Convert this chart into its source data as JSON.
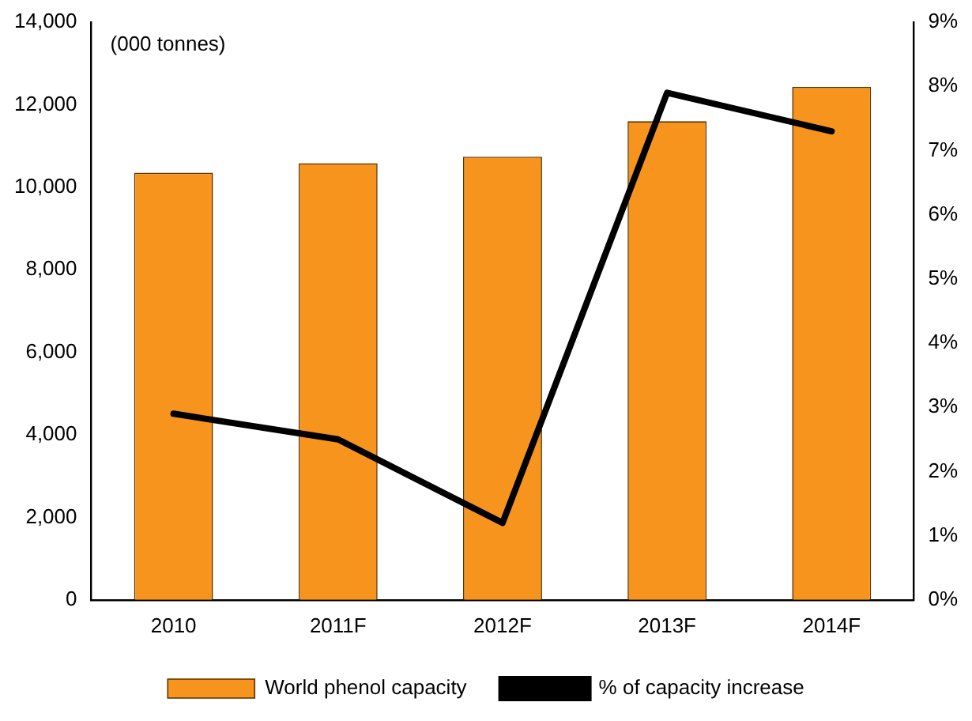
{
  "chart_data": {
    "type": "bar",
    "categories": [
      "2010",
      "2011F",
      "2012F",
      "2013F",
      "2014F"
    ],
    "series": [
      {
        "name": "World phenol capacity",
        "color": "#f7941d",
        "values": [
          10350,
          10580,
          10740,
          11600,
          12430
        ]
      },
      {
        "name": "% of capacity increase",
        "type": "line",
        "axis": "y2",
        "color": "#000000",
        "values": [
          2.9,
          2.5,
          1.2,
          7.9,
          7.3
        ]
      }
    ],
    "ylim": [
      0,
      14000
    ],
    "yticks": [
      {
        "value": 0,
        "label": "0"
      },
      {
        "value": 2000,
        "label": "2,000"
      },
      {
        "value": 4000,
        "label": "4,000"
      },
      {
        "value": 6000,
        "label": "6,000"
      },
      {
        "value": 8000,
        "label": "8,000"
      },
      {
        "value": 10000,
        "label": "10,000"
      },
      {
        "value": 12000,
        "label": "12,000"
      },
      {
        "value": 14000,
        "label": "14,000"
      }
    ],
    "y2lim": [
      0,
      9
    ],
    "y2ticks": [
      {
        "value": 0,
        "label": "0%"
      },
      {
        "value": 1,
        "label": "1%"
      },
      {
        "value": 2,
        "label": "2%"
      },
      {
        "value": 3,
        "label": "3%"
      },
      {
        "value": 4,
        "label": "4%"
      },
      {
        "value": 5,
        "label": "5%"
      },
      {
        "value": 6,
        "label": "6%"
      },
      {
        "value": 7,
        "label": "7%"
      },
      {
        "value": 8,
        "label": "8%"
      },
      {
        "value": 9,
        "label": "9%"
      }
    ],
    "annotations": [
      "(000 tonnes)"
    ],
    "grid": false,
    "legend": "bottom",
    "marker": "none"
  }
}
